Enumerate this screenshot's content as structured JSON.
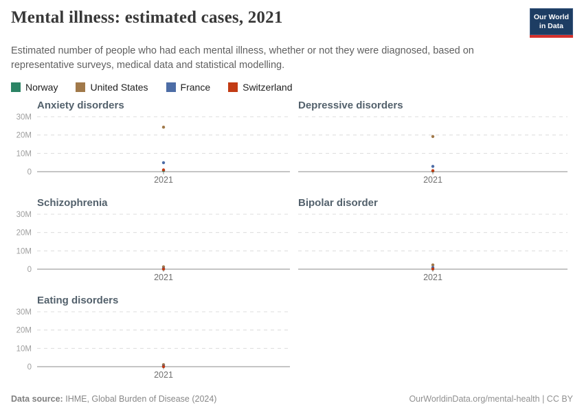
{
  "header": {
    "title": "Mental illness: estimated cases, 2021",
    "subtitle": "Estimated number of people who had each mental illness, whether or not they were diagnosed, based on representative surveys, medical data and statistical modelling.",
    "logo": {
      "line1": "Our World",
      "line2": "in Data",
      "bg": "#1d3d63",
      "accent": "#d4302c"
    }
  },
  "legend": {
    "items": [
      {
        "label": "Norway",
        "color": "#2C8465"
      },
      {
        "label": "United States",
        "color": "#A1794A"
      },
      {
        "label": "France",
        "color": "#4D6DA6"
      },
      {
        "label": "Switzerland",
        "color": "#C23B14"
      }
    ]
  },
  "chart_data": {
    "type": "scatter",
    "x": [
      2021
    ],
    "x_tick_label": "2021",
    "ylim": [
      0,
      30000000
    ],
    "y_ticks": [
      {
        "value": 0,
        "label": "0"
      },
      {
        "value": 10000000,
        "label": "10M"
      },
      {
        "value": 20000000,
        "label": "20M"
      },
      {
        "value": 30000000,
        "label": "30M"
      }
    ],
    "grid": "horizontal-dashed",
    "legend_position": "top",
    "facets": [
      {
        "title": "Anxiety disorders",
        "points": [
          {
            "entity": "Norway",
            "value": 600000
          },
          {
            "entity": "United States",
            "value": 24300000
          },
          {
            "entity": "France",
            "value": 4900000
          },
          {
            "entity": "Switzerland",
            "value": 950000
          }
        ]
      },
      {
        "title": "Depressive disorders",
        "points": [
          {
            "entity": "Norway",
            "value": 350000
          },
          {
            "entity": "United States",
            "value": 19200000
          },
          {
            "entity": "France",
            "value": 2900000
          },
          {
            "entity": "Switzerland",
            "value": 550000
          }
        ]
      },
      {
        "title": "Schizophrenia",
        "points": [
          {
            "entity": "Norway",
            "value": 30000
          },
          {
            "entity": "United States",
            "value": 1300000
          },
          {
            "entity": "France",
            "value": 300000
          },
          {
            "entity": "Switzerland",
            "value": 50000
          }
        ]
      },
      {
        "title": "Bipolar disorder",
        "points": [
          {
            "entity": "Norway",
            "value": 80000
          },
          {
            "entity": "United States",
            "value": 2300000
          },
          {
            "entity": "France",
            "value": 900000
          },
          {
            "entity": "Switzerland",
            "value": 130000
          }
        ]
      },
      {
        "title": "Eating disorders",
        "points": [
          {
            "entity": "Norway",
            "value": 50000
          },
          {
            "entity": "United States",
            "value": 1100000
          },
          {
            "entity": "France",
            "value": 300000
          },
          {
            "entity": "Switzerland",
            "value": 40000
          }
        ]
      }
    ]
  },
  "footer": {
    "source_label": "Data source:",
    "source": "IHME, Global Burden of Disease (2024)",
    "url": "OurWorldinData.org/mental-health",
    "separator": "|",
    "license": "CC BY"
  }
}
